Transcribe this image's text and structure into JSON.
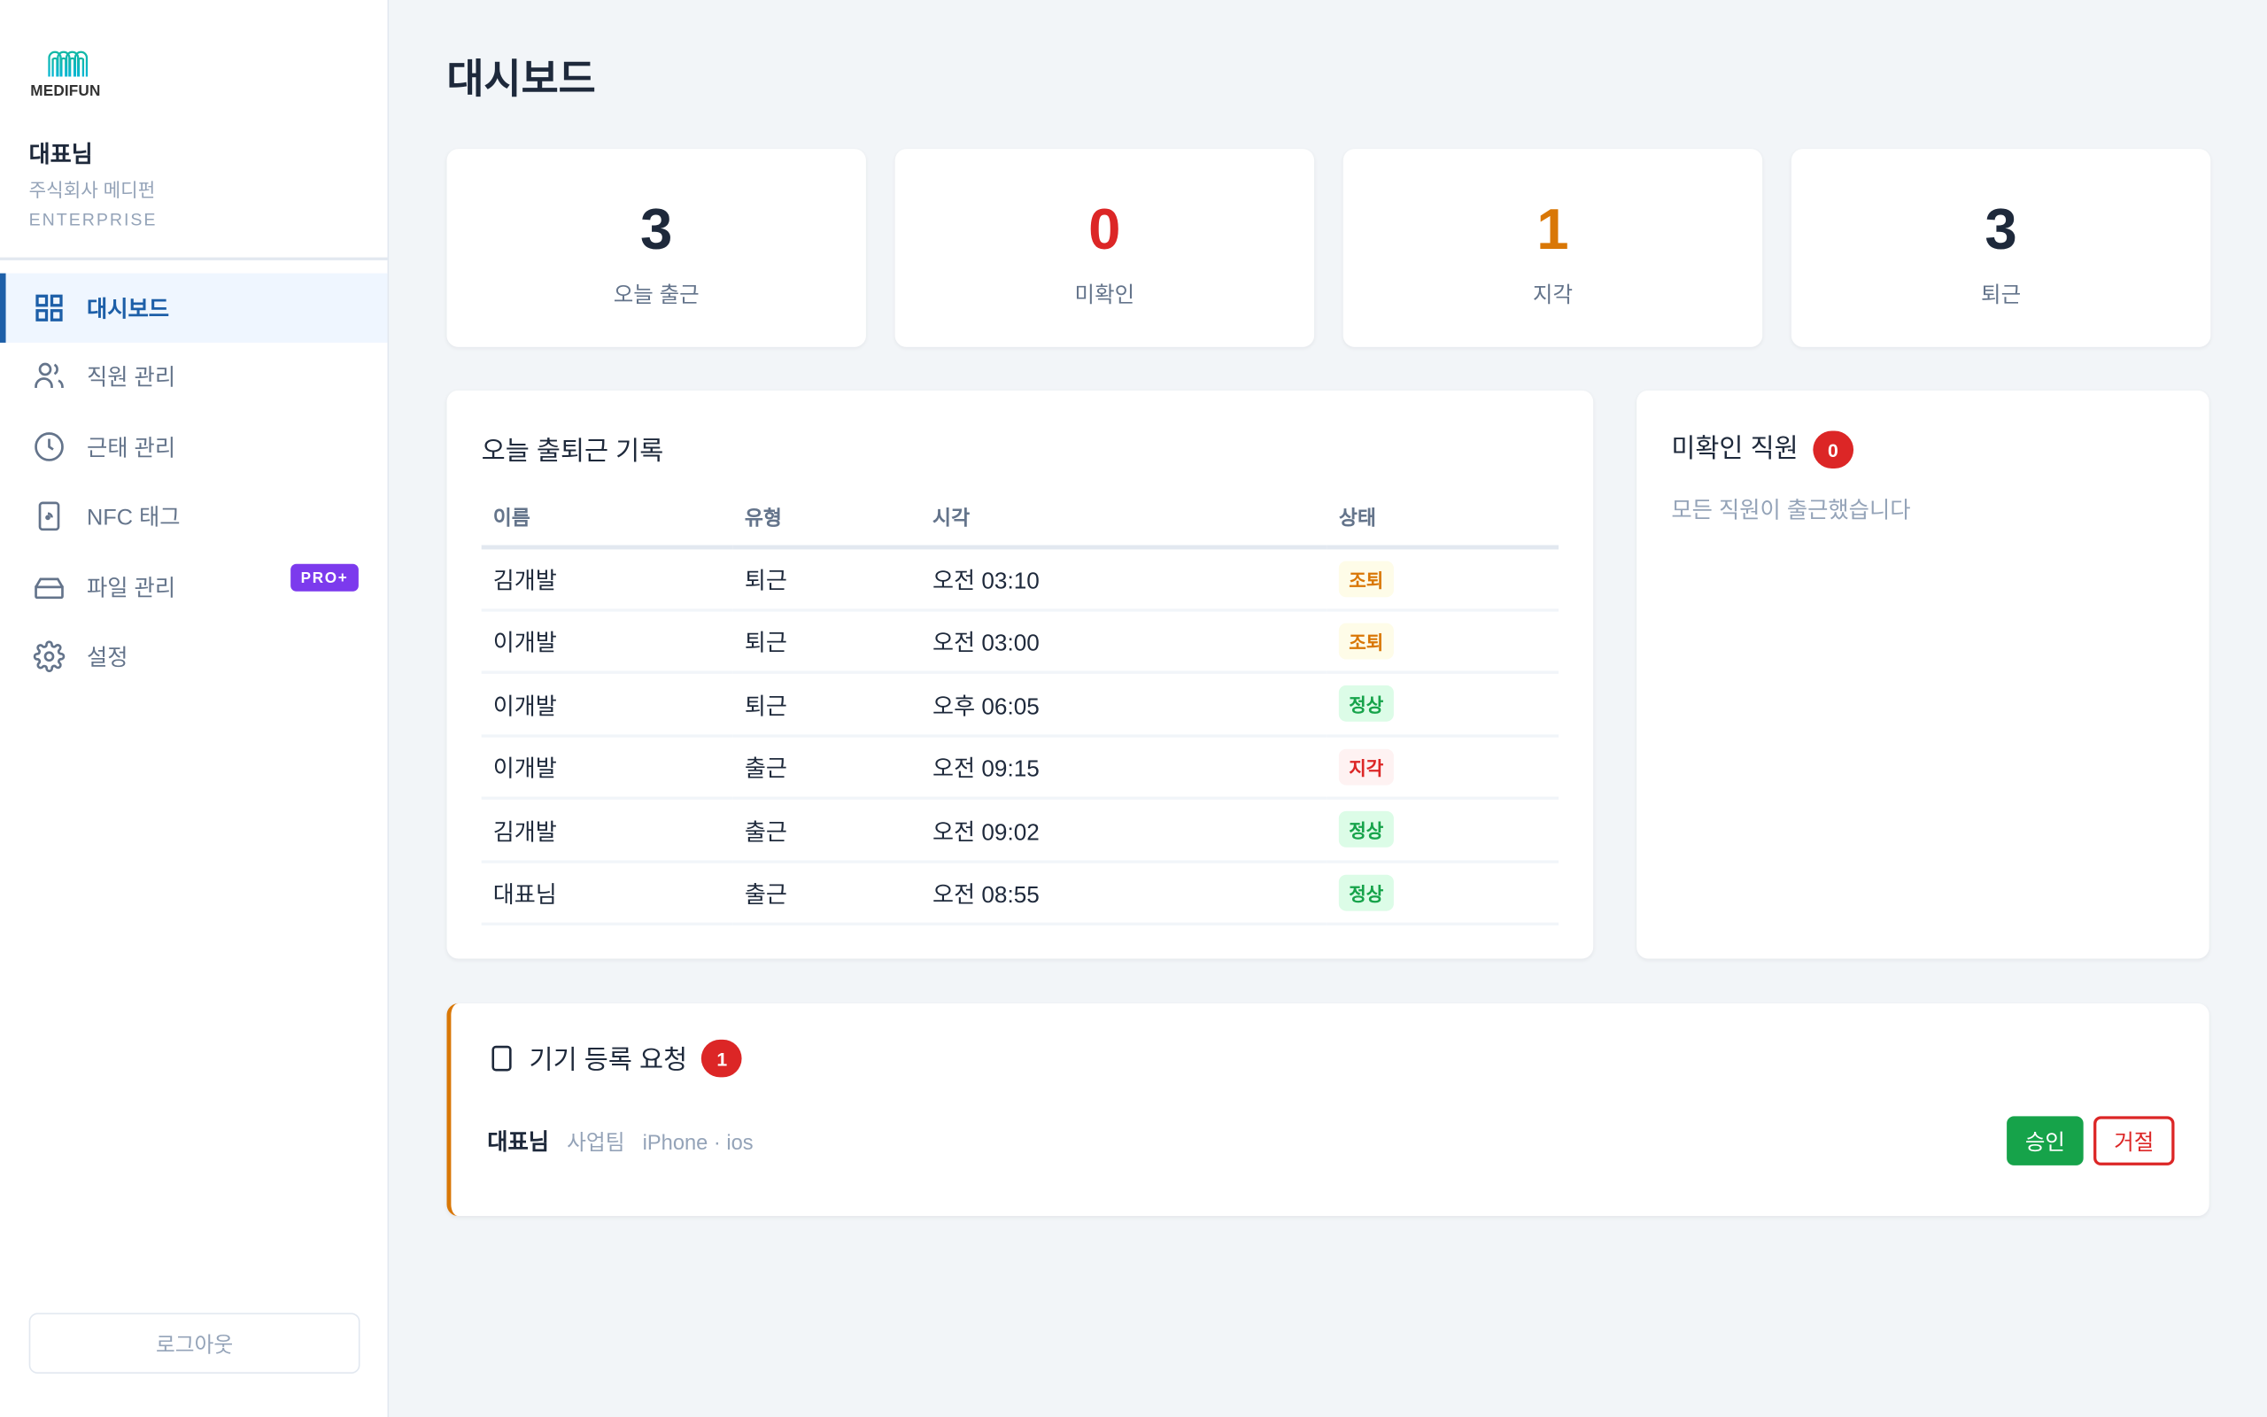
{
  "sidebar": {
    "logo_text": "MEDIFUN",
    "user_name": "대표님",
    "company": "주식회사 메디펀",
    "plan": "ENTERPRISE",
    "items": [
      {
        "label": "대시보드",
        "icon": "grid-icon",
        "active": true
      },
      {
        "label": "직원 관리",
        "icon": "users-icon"
      },
      {
        "label": "근태 관리",
        "icon": "clock-icon"
      },
      {
        "label": "NFC 태그",
        "icon": "nfc-phone-icon"
      },
      {
        "label": "파일 관리",
        "icon": "drive-icon",
        "badge": "PRO+"
      },
      {
        "label": "설정",
        "icon": "gear-icon"
      }
    ],
    "logout": "로그아웃"
  },
  "page_title": "대시보드",
  "stats": [
    {
      "value": "3",
      "label": "오늘 출근",
      "color": "#1e293b"
    },
    {
      "value": "0",
      "label": "미확인",
      "color": "#dc2626"
    },
    {
      "value": "1",
      "label": "지각",
      "color": "#d97706"
    },
    {
      "value": "3",
      "label": "퇴근",
      "color": "#1e293b"
    }
  ],
  "records": {
    "title": "오늘 출퇴근 기록",
    "columns": [
      "이름",
      "유형",
      "시각",
      "상태"
    ],
    "rows": [
      {
        "name": "김개발",
        "type": "퇴근",
        "time": "오전 03:10",
        "status": "조퇴"
      },
      {
        "name": "이개발",
        "type": "퇴근",
        "time": "오전 03:00",
        "status": "조퇴"
      },
      {
        "name": "이개발",
        "type": "퇴근",
        "time": "오후 06:05",
        "status": "정상"
      },
      {
        "name": "이개발",
        "type": "출근",
        "time": "오전 09:15",
        "status": "지각"
      },
      {
        "name": "김개발",
        "type": "출근",
        "time": "오전 09:02",
        "status": "정상"
      },
      {
        "name": "대표님",
        "type": "출근",
        "time": "오전 08:55",
        "status": "정상"
      }
    ]
  },
  "status_colors": {
    "조퇴": [
      "#fefce8",
      "#d97706"
    ],
    "정상": [
      "#dcfce7",
      "#16a34a"
    ],
    "지각": [
      "#fef2f2",
      "#dc2626"
    ]
  },
  "unconfirmed": {
    "title": "미확인 직원",
    "count": "0",
    "empty_text": "모든 직원이 출근했습니다"
  },
  "device_requests": {
    "title": "기기 등록 요청",
    "count": "1",
    "items": [
      {
        "name": "대표님",
        "team": "사업팀",
        "device": "iPhone · ios",
        "approve": "승인",
        "reject": "거절"
      }
    ]
  },
  "colors": {
    "accent": "#1d5fa8",
    "warning": "#d97706",
    "danger": "#dc2626",
    "success": "#16a34a",
    "pro": "#7c3aed"
  }
}
